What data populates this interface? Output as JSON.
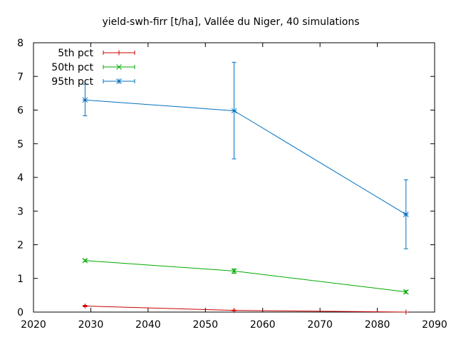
{
  "chart_data": {
    "type": "line",
    "title": "yield-swh-firr [t/ha], Vallée du Niger, 40 simulations",
    "xlabel": "",
    "ylabel": "",
    "xlim": [
      2020,
      2090
    ],
    "ylim": [
      0,
      8
    ],
    "xticks": [
      2020,
      2030,
      2040,
      2050,
      2060,
      2070,
      2080,
      2090
    ],
    "yticks": [
      0,
      1,
      2,
      3,
      4,
      5,
      6,
      7,
      8
    ],
    "legend_position": "top-left",
    "grid": false,
    "series": [
      {
        "name": "5th pct",
        "color": "#cc0000",
        "marker": "plus",
        "x": [
          2029,
          2055,
          2085
        ],
        "y": [
          0.18,
          0.05,
          0.0
        ],
        "err_low": [
          0.16,
          0.04,
          0.0
        ],
        "err_high": [
          0.2,
          0.06,
          0.0
        ]
      },
      {
        "name": "50th pct",
        "color": "#00aa00",
        "marker": "cross",
        "x": [
          2029,
          2055,
          2085
        ],
        "y": [
          1.53,
          1.22,
          0.6
        ],
        "err_low": [
          1.5,
          1.15,
          0.56
        ],
        "err_high": [
          1.56,
          1.28,
          0.64
        ]
      },
      {
        "name": "95th pct",
        "color": "#0070c0",
        "marker": "star",
        "x": [
          2029,
          2055,
          2085
        ],
        "y": [
          6.3,
          5.98,
          2.9
        ],
        "err_low": [
          5.83,
          4.55,
          1.88
        ],
        "err_high": [
          6.77,
          7.42,
          3.93
        ]
      }
    ]
  }
}
